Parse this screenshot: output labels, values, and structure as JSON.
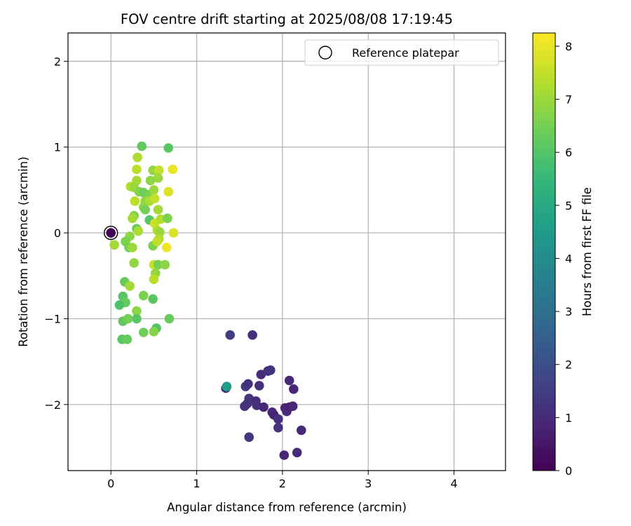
{
  "chart_data": {
    "type": "scatter",
    "title": "FOV centre drift starting at 2025/08/08 17:19:45",
    "xlabel": "Angular distance from reference (arcmin)",
    "ylabel": "Rotation from reference (arcmin)",
    "xlim": [
      -0.5,
      4.6
    ],
    "ylim": [
      -2.77,
      2.33
    ],
    "xticks": [
      0,
      1,
      2,
      3,
      4
    ],
    "yticks": [
      -2,
      -1,
      0,
      1,
      2
    ],
    "xtick_labels": [
      "0",
      "1",
      "2",
      "3",
      "4"
    ],
    "ytick_labels": [
      "−2",
      "−1",
      "0",
      "1",
      "2"
    ],
    "grid": true,
    "legend": {
      "label": "Reference platepar",
      "placement": "top-right"
    },
    "reference_point": {
      "x": 0,
      "y": 0
    },
    "colorbar": {
      "label": "Hours from first FF file",
      "colormap": "viridis",
      "min": 0,
      "max": 8.25,
      "ticks": [
        0,
        1,
        2,
        3,
        4,
        5,
        6,
        7,
        8
      ],
      "tick_labels": [
        "0",
        "1",
        "2",
        "3",
        "4",
        "5",
        "6",
        "7",
        "8"
      ]
    },
    "colormap_stops": [
      "#440154",
      "#482878",
      "#3e4989",
      "#31688e",
      "#26828e",
      "#1f9e89",
      "#35b779",
      "#6ece58",
      "#b5de2b",
      "#fde725"
    ],
    "points": [
      {
        "x": 0.0,
        "y": 0.0,
        "h": 0.0
      },
      {
        "x": 1.34,
        "y": -1.81,
        "h": 1.2
      },
      {
        "x": 1.35,
        "y": -1.79,
        "h": 4.6
      },
      {
        "x": 1.39,
        "y": -1.19,
        "h": 1.5
      },
      {
        "x": 1.65,
        "y": -1.19,
        "h": 1.1
      },
      {
        "x": 1.57,
        "y": -1.79,
        "h": 1.3
      },
      {
        "x": 1.6,
        "y": -1.76,
        "h": 1.2
      },
      {
        "x": 1.73,
        "y": -1.78,
        "h": 1.1
      },
      {
        "x": 1.75,
        "y": -1.65,
        "h": 1.0
      },
      {
        "x": 1.83,
        "y": -1.61,
        "h": 1.1
      },
      {
        "x": 1.86,
        "y": -1.6,
        "h": 1.2
      },
      {
        "x": 2.08,
        "y": -1.72,
        "h": 1.0
      },
      {
        "x": 2.13,
        "y": -1.82,
        "h": 0.9
      },
      {
        "x": 1.61,
        "y": -1.93,
        "h": 1.3
      },
      {
        "x": 1.56,
        "y": -2.02,
        "h": 1.1
      },
      {
        "x": 1.59,
        "y": -1.99,
        "h": 1.2
      },
      {
        "x": 1.69,
        "y": -1.96,
        "h": 1.0
      },
      {
        "x": 1.7,
        "y": -2.01,
        "h": 1.1
      },
      {
        "x": 1.78,
        "y": -2.03,
        "h": 0.9
      },
      {
        "x": 1.88,
        "y": -2.09,
        "h": 1.0
      },
      {
        "x": 1.9,
        "y": -2.12,
        "h": 0.8
      },
      {
        "x": 1.95,
        "y": -2.17,
        "h": 1.1
      },
      {
        "x": 2.03,
        "y": -2.04,
        "h": 0.9
      },
      {
        "x": 2.05,
        "y": -2.08,
        "h": 1.0
      },
      {
        "x": 2.08,
        "y": -2.03,
        "h": 0.8
      },
      {
        "x": 2.12,
        "y": -2.02,
        "h": 0.9
      },
      {
        "x": 1.95,
        "y": -2.27,
        "h": 1.2
      },
      {
        "x": 2.22,
        "y": -2.3,
        "h": 1.0
      },
      {
        "x": 1.61,
        "y": -2.38,
        "h": 1.3
      },
      {
        "x": 2.17,
        "y": -2.56,
        "h": 1.0
      },
      {
        "x": 2.02,
        "y": -2.59,
        "h": 0.9
      },
      {
        "x": 0.36,
        "y": 1.01,
        "h": 6.2
      },
      {
        "x": 0.67,
        "y": 0.99,
        "h": 6.1
      },
      {
        "x": 0.31,
        "y": 0.88,
        "h": 7.2
      },
      {
        "x": 0.3,
        "y": 0.74,
        "h": 7.4
      },
      {
        "x": 0.49,
        "y": 0.73,
        "h": 6.9
      },
      {
        "x": 0.56,
        "y": 0.73,
        "h": 7.5
      },
      {
        "x": 0.72,
        "y": 0.74,
        "h": 8.0
      },
      {
        "x": 0.3,
        "y": 0.61,
        "h": 7.1
      },
      {
        "x": 0.46,
        "y": 0.61,
        "h": 6.8
      },
      {
        "x": 0.55,
        "y": 0.64,
        "h": 7.0
      },
      {
        "x": 0.23,
        "y": 0.54,
        "h": 7.3
      },
      {
        "x": 0.27,
        "y": 0.53,
        "h": 7.0
      },
      {
        "x": 0.33,
        "y": 0.48,
        "h": 6.7
      },
      {
        "x": 0.38,
        "y": 0.47,
        "h": 6.4
      },
      {
        "x": 0.46,
        "y": 0.45,
        "h": 6.6
      },
      {
        "x": 0.5,
        "y": 0.5,
        "h": 7.0
      },
      {
        "x": 0.67,
        "y": 0.48,
        "h": 7.8
      },
      {
        "x": 0.28,
        "y": 0.37,
        "h": 7.4
      },
      {
        "x": 0.4,
        "y": 0.37,
        "h": 6.9
      },
      {
        "x": 0.45,
        "y": 0.37,
        "h": 7.2
      },
      {
        "x": 0.51,
        "y": 0.4,
        "h": 7.5
      },
      {
        "x": 0.38,
        "y": 0.3,
        "h": 6.8
      },
      {
        "x": 0.4,
        "y": 0.27,
        "h": 6.5
      },
      {
        "x": 0.55,
        "y": 0.27,
        "h": 7.1
      },
      {
        "x": 0.27,
        "y": 0.2,
        "h": 6.7
      },
      {
        "x": 0.25,
        "y": 0.17,
        "h": 7.1
      },
      {
        "x": 0.45,
        "y": 0.15,
        "h": 6.0
      },
      {
        "x": 0.51,
        "y": 0.11,
        "h": 7.6
      },
      {
        "x": 0.58,
        "y": 0.16,
        "h": 7.3
      },
      {
        "x": 0.66,
        "y": 0.17,
        "h": 6.6
      },
      {
        "x": 0.3,
        "y": 0.05,
        "h": 6.3
      },
      {
        "x": 0.32,
        "y": 0.02,
        "h": 7.2
      },
      {
        "x": 0.54,
        "y": 0.03,
        "h": 7.3
      },
      {
        "x": 0.57,
        "y": 0.01,
        "h": 7.0
      },
      {
        "x": 0.73,
        "y": 0.0,
        "h": 7.8
      },
      {
        "x": 0.22,
        "y": -0.04,
        "h": 6.8
      },
      {
        "x": 0.17,
        "y": -0.1,
        "h": 6.6
      },
      {
        "x": 0.04,
        "y": -0.14,
        "h": 7.1
      },
      {
        "x": 0.21,
        "y": -0.17,
        "h": 6.5
      },
      {
        "x": 0.25,
        "y": -0.17,
        "h": 7.0
      },
      {
        "x": 0.49,
        "y": -0.15,
        "h": 6.6
      },
      {
        "x": 0.56,
        "y": -0.07,
        "h": 7.2
      },
      {
        "x": 0.54,
        "y": -0.1,
        "h": 7.5
      },
      {
        "x": 0.65,
        "y": -0.17,
        "h": 8.1
      },
      {
        "x": 0.27,
        "y": -0.35,
        "h": 6.9
      },
      {
        "x": 0.5,
        "y": -0.37,
        "h": 7.6
      },
      {
        "x": 0.55,
        "y": -0.37,
        "h": 6.5
      },
      {
        "x": 0.63,
        "y": -0.37,
        "h": 6.8
      },
      {
        "x": 0.52,
        "y": -0.47,
        "h": 6.9
      },
      {
        "x": 0.5,
        "y": -0.54,
        "h": 7.4
      },
      {
        "x": 0.16,
        "y": -0.57,
        "h": 6.3
      },
      {
        "x": 0.22,
        "y": -0.62,
        "h": 7.1
      },
      {
        "x": 0.38,
        "y": -0.73,
        "h": 6.6
      },
      {
        "x": 0.49,
        "y": -0.77,
        "h": 6.1
      },
      {
        "x": 0.14,
        "y": -0.74,
        "h": 6.1
      },
      {
        "x": 0.17,
        "y": -0.81,
        "h": 6.3
      },
      {
        "x": 0.1,
        "y": -0.84,
        "h": 5.9
      },
      {
        "x": 0.3,
        "y": -0.91,
        "h": 6.8
      },
      {
        "x": 0.14,
        "y": -1.03,
        "h": 6.2
      },
      {
        "x": 0.2,
        "y": -1.0,
        "h": 6.5
      },
      {
        "x": 0.3,
        "y": -1.0,
        "h": 6.1
      },
      {
        "x": 0.68,
        "y": -1.0,
        "h": 6.3
      },
      {
        "x": 0.53,
        "y": -1.11,
        "h": 6.0
      },
      {
        "x": 0.38,
        "y": -1.16,
        "h": 6.4
      },
      {
        "x": 0.5,
        "y": -1.15,
        "h": 6.7
      },
      {
        "x": 0.13,
        "y": -1.24,
        "h": 6.1
      },
      {
        "x": 0.19,
        "y": -1.24,
        "h": 6.3
      }
    ]
  }
}
